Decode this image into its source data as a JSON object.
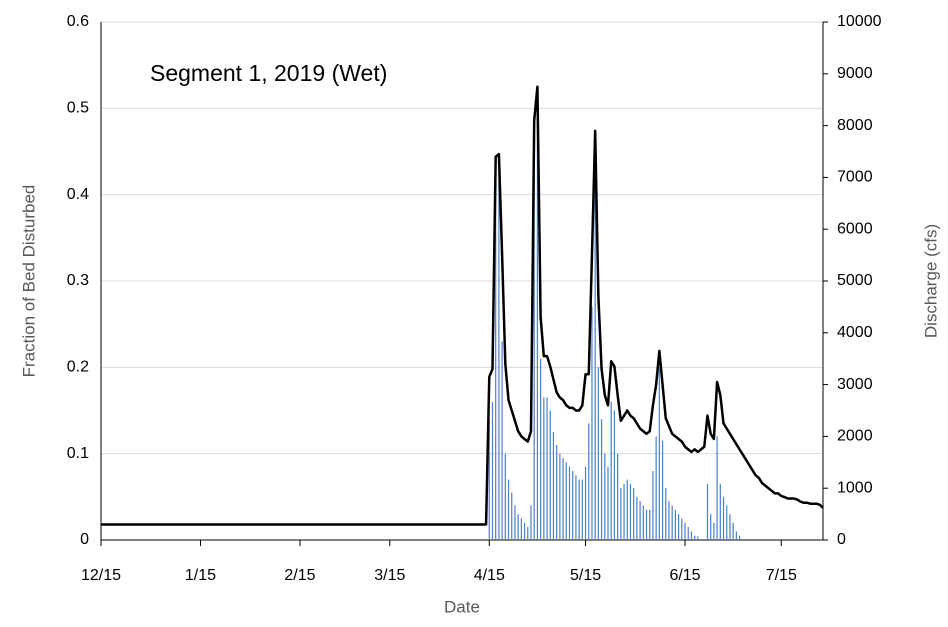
{
  "chart_data": {
    "type": "bar-line",
    "title": "Segment 1, 2019 (Wet)",
    "x_label": "Date",
    "y_label": "Fraction of Bed Disturbed",
    "y2_label": "Discharge (cfs)",
    "xlim": [
      0,
      225
    ],
    "xticks": [
      {
        "value": 0,
        "label": "12/15"
      },
      {
        "value": 31,
        "label": "1/15"
      },
      {
        "value": 62,
        "label": "2/15"
      },
      {
        "value": 90,
        "label": "3/15"
      },
      {
        "value": 121,
        "label": "4/15"
      },
      {
        "value": 151,
        "label": "5/15"
      },
      {
        "value": 182,
        "label": "6/15"
      },
      {
        "value": 212,
        "label": "7/15"
      }
    ],
    "ylim": [
      0,
      0.6
    ],
    "yticks": [
      0,
      0.1,
      0.2,
      0.3,
      0.4,
      0.5,
      0.6
    ],
    "y2lim": [
      0,
      10000
    ],
    "y2ticks": [
      0,
      1000,
      2000,
      3000,
      4000,
      5000,
      6000,
      7000,
      8000,
      9000,
      10000
    ],
    "grid": true,
    "series": [
      {
        "type": "bar",
        "color": "#4f7fc4",
        "x": [
          121,
          122,
          123,
          124,
          125,
          126,
          127,
          128,
          129,
          130,
          131,
          132,
          133,
          134,
          135,
          136,
          137,
          138,
          139,
          140,
          141,
          142,
          143,
          144,
          145,
          146,
          147,
          148,
          149,
          150,
          151,
          152,
          153,
          154,
          155,
          156,
          157,
          158,
          159,
          160,
          161,
          162,
          163,
          164,
          165,
          166,
          167,
          168,
          169,
          170,
          171,
          172,
          173,
          174,
          175,
          176,
          177,
          178,
          179,
          180,
          181,
          182,
          183,
          184,
          185,
          186,
          189,
          190,
          191,
          192,
          193,
          194,
          195,
          196,
          197,
          198,
          199
        ],
        "values": [
          0.14,
          0.16,
          0.44,
          0.44,
          0.23,
          0.1,
          0.07,
          0.055,
          0.04,
          0.03,
          0.025,
          0.02,
          0.015,
          0.04,
          0.48,
          0.52,
          0.21,
          0.165,
          0.165,
          0.15,
          0.125,
          0.11,
          0.1,
          0.095,
          0.09,
          0.085,
          0.08,
          0.075,
          0.07,
          0.07,
          0.085,
          0.135,
          0.27,
          0.47,
          0.2,
          0.14,
          0.1,
          0.085,
          0.16,
          0.15,
          0.1,
          0.06,
          0.065,
          0.07,
          0.065,
          0.06,
          0.05,
          0.045,
          0.04,
          0.035,
          0.035,
          0.08,
          0.12,
          0.2,
          0.115,
          0.06,
          0.045,
          0.04,
          0.035,
          0.03,
          0.025,
          0.02,
          0.015,
          0.01,
          0.005,
          0.004,
          0.065,
          0.03,
          0.02,
          0.12,
          0.065,
          0.05,
          0.04,
          0.03,
          0.02,
          0.01,
          0.005
        ]
      },
      {
        "type": "line",
        "axis": "y2",
        "color": "#000000",
        "x": [
          0,
          120,
          121,
          122,
          123,
          124,
          125,
          126,
          127,
          128,
          129,
          130,
          131,
          132,
          133,
          134,
          135,
          136,
          137,
          138,
          139,
          140,
          141,
          142,
          143,
          144,
          145,
          146,
          147,
          148,
          149,
          150,
          151,
          152,
          153,
          154,
          155,
          156,
          157,
          158,
          159,
          160,
          161,
          162,
          163,
          164,
          165,
          166,
          167,
          168,
          169,
          170,
          171,
          172,
          173,
          174,
          175,
          176,
          177,
          178,
          179,
          180,
          181,
          182,
          183,
          184,
          185,
          186,
          187,
          188,
          189,
          190,
          191,
          192,
          193,
          194,
          195,
          196,
          197,
          198,
          199,
          200,
          201,
          202,
          203,
          204,
          205,
          206,
          207,
          208,
          209,
          210,
          211,
          212,
          213,
          214,
          215,
          216,
          217,
          218,
          219,
          220,
          221,
          222,
          223,
          224,
          225
        ],
        "values": [
          300,
          300,
          3150,
          3300,
          7400,
          7450,
          5500,
          3400,
          2700,
          2500,
          2300,
          2100,
          2000,
          1950,
          1900,
          2100,
          8100,
          8750,
          4300,
          3550,
          3550,
          3350,
          3100,
          2850,
          2750,
          2700,
          2600,
          2550,
          2550,
          2500,
          2500,
          2600,
          3200,
          3200,
          5500,
          7900,
          4700,
          3300,
          2800,
          2600,
          3450,
          3350,
          2800,
          2300,
          2400,
          2500,
          2400,
          2350,
          2250,
          2150,
          2100,
          2050,
          2100,
          2600,
          3000,
          3650,
          3000,
          2350,
          2200,
          2050,
          2000,
          1950,
          1900,
          1800,
          1750,
          1700,
          1750,
          1700,
          1750,
          1800,
          2400,
          2050,
          1950,
          3050,
          2800,
          2250,
          2150,
          2050,
          1950,
          1850,
          1750,
          1650,
          1550,
          1450,
          1350,
          1250,
          1200,
          1100,
          1050,
          1000,
          950,
          900,
          900,
          850,
          830,
          800,
          800,
          800,
          780,
          740,
          720,
          720,
          700,
          700,
          700,
          680,
          620
        ]
      }
    ]
  }
}
